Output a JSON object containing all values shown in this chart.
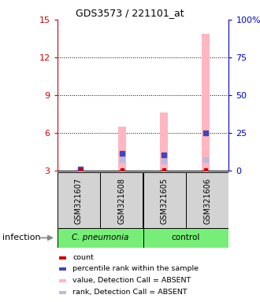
{
  "title": "GDS3573 / 221101_at",
  "samples": [
    "GSM321607",
    "GSM321608",
    "GSM321605",
    "GSM321606"
  ],
  "pink_bar_values": [
    3.08,
    6.5,
    7.6,
    13.85
  ],
  "blue_marker_values": [
    3.1,
    4.35,
    4.25,
    6.0
  ],
  "red_marker_values": [
    3.03,
    3.03,
    3.03,
    3.03
  ],
  "light_blue_marker_values": [
    3.03,
    3.85,
    3.75,
    3.85
  ],
  "ylim_left": [
    3,
    15
  ],
  "ylim_right": [
    0,
    100
  ],
  "yticks_left": [
    3,
    6,
    9,
    12,
    15
  ],
  "yticks_right": [
    0,
    25,
    50,
    75,
    100
  ],
  "ytick_labels_left": [
    "3",
    "6",
    "9",
    "12",
    "15"
  ],
  "ytick_labels_right": [
    "0",
    "25",
    "50",
    "75",
    "100%"
  ],
  "left_axis_color": "#cc0000",
  "right_axis_color": "#0000cc",
  "pink_color": "#FFB6C1",
  "blue_marker_color": "#4444BB",
  "red_marker_color": "#CC0000",
  "light_blue_color": "#BBBBDD",
  "bar_width": 0.18,
  "legend_labels": [
    "count",
    "percentile rank within the sample",
    "value, Detection Call = ABSENT",
    "rank, Detection Call = ABSENT"
  ],
  "legend_colors": [
    "#CC0000",
    "#4444BB",
    "#FFB6C1",
    "#BBBBDD"
  ],
  "infection_label": "infection",
  "group_spans": [
    {
      "label": "C. pneumonia",
      "cols": [
        0,
        1
      ],
      "color": "#77EE77",
      "italic": true
    },
    {
      "label": "control",
      "cols": [
        2,
        3
      ],
      "color": "#77EE77",
      "italic": false
    }
  ],
  "grid_yticks": [
    6,
    9,
    12
  ],
  "bg_color": "#ffffff"
}
